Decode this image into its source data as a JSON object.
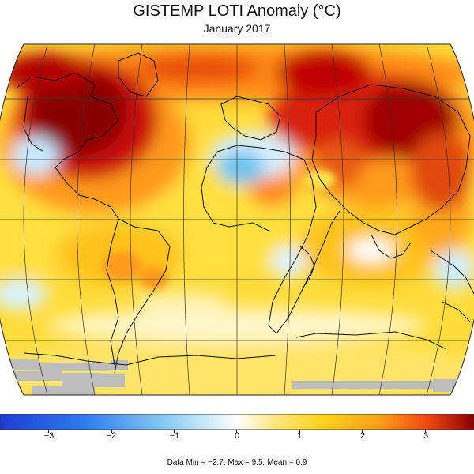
{
  "title": "GISTEMP LOTI Anomaly (°C)",
  "subtitle": "January 2017",
  "colorbar": {
    "tick_labels": [
      "−3",
      "−2",
      "−1",
      "0",
      "1",
      "2",
      "3"
    ],
    "colors": [
      "#1e3cd2",
      "#2f7df0",
      "#8fd0f5",
      "#ffffff",
      "#ffe680",
      "#ffd21e",
      "#ff9f1c",
      "#f04a10",
      "#8a0000"
    ]
  },
  "stats": "Data Min = −2.7, Max = 9.5, Mean = 0.9"
}
